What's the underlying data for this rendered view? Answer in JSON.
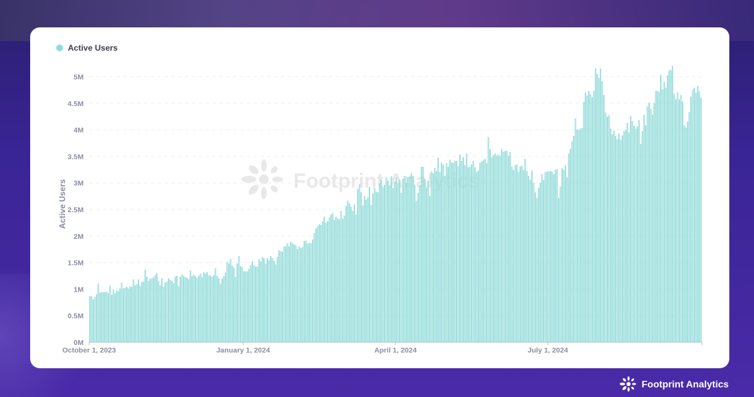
{
  "legend": {
    "label": "Active Users",
    "color": "#8fdcdc"
  },
  "watermark": "Footprint Analytics",
  "brand": {
    "name": "Footprint Analytics"
  },
  "chart_data": {
    "type": "bar",
    "title": "",
    "xlabel": "",
    "ylabel": "Active Users",
    "ylim": [
      0,
      5.25
    ],
    "y_unit": "M",
    "grid": true,
    "legend_placement": "top-left",
    "series": [
      {
        "name": "Active Users",
        "color": "#a8e4e2"
      }
    ],
    "x_start": "October 1, 2023",
    "x_interval": "daily",
    "x_ticks": [
      {
        "day_index": 0,
        "label": "October 1, 2023"
      },
      {
        "day_index": 92,
        "label": "January 1, 2024"
      },
      {
        "day_index": 183,
        "label": "April 1, 2024"
      },
      {
        "day_index": 274,
        "label": "July 1, 2024"
      }
    ],
    "y_ticks": [
      {
        "value": 0,
        "label": "0M"
      },
      {
        "value": 0.5,
        "label": "0.5M"
      },
      {
        "value": 1,
        "label": "1M"
      },
      {
        "value": 1.5,
        "label": "1.5M"
      },
      {
        "value": 2,
        "label": "2M"
      },
      {
        "value": 2.5,
        "label": "2.5M"
      },
      {
        "value": 3,
        "label": "3M"
      },
      {
        "value": 3.5,
        "label": "3.5M"
      },
      {
        "value": 4,
        "label": "4M"
      },
      {
        "value": 4.5,
        "label": "4.5M"
      },
      {
        "value": 5,
        "label": "5M"
      }
    ],
    "values_millions": [
      0.87,
      0.86,
      0.8,
      0.85,
      0.9,
      1.1,
      0.93,
      0.94,
      0.94,
      0.94,
      0.95,
      0.92,
      1.06,
      0.89,
      0.99,
      0.92,
      0.97,
      0.96,
      1.01,
      1.12,
      1.01,
      1.02,
      1.04,
      1.01,
      1.05,
      1.04,
      1.18,
      1.07,
      1.09,
      1.18,
      1.06,
      1.13,
      1.14,
      1.36,
      1.23,
      1.15,
      1.19,
      1.2,
      1.22,
      1.26,
      1.3,
      1.15,
      1.07,
      1.2,
      1.04,
      1.12,
      1.14,
      1.2,
      1.17,
      1.15,
      1.11,
      1.23,
      1.25,
      1.05,
      1.23,
      1.27,
      1.24,
      1.22,
      1.21,
      1.18,
      1.35,
      1.24,
      1.27,
      1.24,
      1.21,
      1.25,
      1.29,
      1.22,
      1.32,
      1.29,
      1.32,
      1.26,
      1.25,
      1.23,
      1.26,
      1.39,
      1.24,
      1.2,
      1.1,
      1.2,
      1.24,
      1.31,
      1.51,
      1.48,
      1.56,
      1.44,
      1.4,
      1.23,
      1.48,
      1.62,
      1.43,
      1.41,
      1.33,
      1.33,
      1.33,
      1.38,
      1.45,
      1.52,
      1.45,
      1.42,
      1.42,
      1.56,
      1.52,
      1.6,
      1.58,
      1.48,
      1.58,
      1.55,
      1.62,
      1.58,
      1.53,
      1.46,
      1.6,
      1.73,
      1.71,
      1.7,
      1.8,
      1.8,
      1.86,
      1.8,
      1.89,
      1.86,
      1.84,
      1.82,
      1.75,
      1.8,
      1.77,
      1.79,
      1.9,
      1.91,
      1.85,
      1.87,
      1.86,
      1.93,
      2.05,
      2.14,
      2.18,
      2.22,
      2.2,
      2.27,
      2.36,
      2.25,
      2.27,
      2.35,
      2.4,
      2.43,
      2.3,
      2.36,
      2.33,
      2.31,
      2.47,
      2.32,
      2.38,
      2.56,
      2.66,
      2.61,
      2.55,
      2.47,
      2.59,
      2.4,
      2.88,
      2.97,
      2.82,
      2.57,
      2.75,
      2.68,
      2.72,
      2.92,
      2.58,
      2.8,
      2.9,
      2.83,
      2.82,
      2.99,
      3.06,
      2.91,
      2.96,
      3.1,
      3.04,
      2.95,
      3.12,
      2.9,
      3.02,
      3.1,
      2.98,
      3.05,
      2.81,
      3.08,
      3.13,
      3.0,
      3.1,
      3.12,
      3.18,
      3.13,
      2.95,
      2.66,
      2.81,
      2.95,
      3.3,
      3.3,
      3.06,
      2.9,
      3.04,
      2.75,
      3.21,
      3.18,
      3.28,
      3.22,
      3.47,
      3.2,
      3.38,
      3.34,
      3.13,
      3.37,
      3.3,
      3.43,
      3.38,
      3.37,
      3.41,
      3.41,
      3.31,
      3.53,
      3.41,
      3.48,
      3.33,
      3.55,
      3.29,
      3.3,
      3.34,
      3.41,
      3.29,
      3.2,
      3.23,
      3.37,
      3.4,
      3.42,
      3.45,
      3.37,
      3.86,
      3.63,
      3.48,
      3.52,
      3.55,
      3.51,
      3.53,
      3.51,
      3.63,
      3.58,
      3.6,
      3.6,
      3.51,
      3.58,
      3.3,
      3.24,
      3.33,
      3.34,
      3.2,
      3.3,
      3.32,
      3.24,
      3.45,
      3.22,
      3.13,
      3.06,
      3.23,
      3.0,
      2.82,
      2.71,
      2.9,
      3.0,
      3.16,
      3.05,
      3.2,
      3.21,
      3.21,
      3.22,
      3.21,
      3.16,
      3.24,
      3.26,
      2.71,
      2.93,
      3.27,
      3.24,
      3.33,
      3.1,
      3.55,
      3.64,
      3.78,
      3.88,
      4.21,
      4.0,
      3.99,
      4.02,
      4.03,
      4.52,
      4.7,
      4.64,
      4.73,
      4.67,
      4.61,
      4.73,
      5.15,
      5.05,
      4.97,
      5.15,
      4.91,
      4.65,
      4.32,
      4.24,
      4.27,
      4.02,
      3.91,
      3.98,
      3.88,
      3.82,
      3.92,
      3.81,
      3.89,
      3.97,
      3.99,
      4.13,
      3.95,
      4.25,
      4.16,
      4.07,
      4.02,
      4.06,
      4.18,
      3.73,
      3.97,
      4.28,
      4.08,
      4.44,
      4.51,
      4.39,
      4.28,
      4.5,
      4.73,
      4.73,
      4.71,
      5.03,
      4.76,
      4.9,
      4.79,
      5.02,
      5.12,
      5.12,
      5.2,
      4.67,
      4.57,
      4.7,
      4.57,
      4.65,
      4.53,
      4.08,
      4.04,
      4.15,
      4.33,
      4.62,
      4.75,
      4.79,
      4.69,
      4.82,
      4.72,
      4.6
    ]
  }
}
